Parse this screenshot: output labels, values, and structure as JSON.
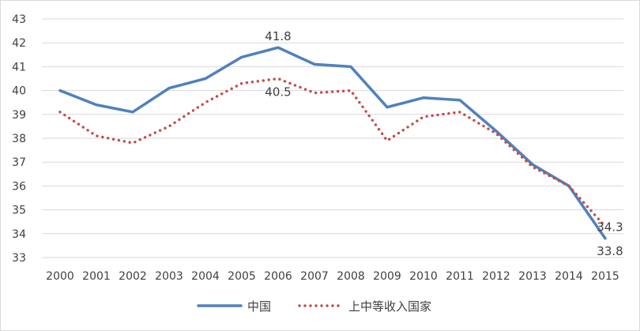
{
  "chart_data": {
    "type": "line",
    "categories": [
      "2000",
      "2001",
      "2002",
      "2003",
      "2004",
      "2005",
      "2006",
      "2007",
      "2008",
      "2009",
      "2010",
      "2011",
      "2012",
      "2013",
      "2014",
      "2015"
    ],
    "ylim": [
      33,
      43
    ],
    "yticks": [
      33,
      34,
      35,
      36,
      37,
      38,
      39,
      40,
      41,
      42,
      43
    ],
    "grid": true,
    "legend_position": "bottom",
    "series": [
      {
        "name": "中国",
        "color": "#4f81bd",
        "style": "solid",
        "values": [
          40.0,
          39.4,
          39.1,
          40.1,
          40.5,
          41.4,
          41.8,
          41.1,
          41.0,
          39.3,
          39.7,
          39.6,
          38.3,
          36.9,
          36.0,
          33.8
        ]
      },
      {
        "name": "上中等收入国家",
        "color": "#c0504d",
        "style": "dotted",
        "values": [
          39.1,
          38.1,
          37.8,
          38.5,
          39.5,
          40.3,
          40.5,
          39.9,
          40.0,
          37.9,
          38.9,
          39.1,
          38.2,
          36.8,
          36.0,
          34.3
        ]
      }
    ],
    "data_labels": [
      {
        "series": 0,
        "index": 6,
        "text": "41.8"
      },
      {
        "series": 1,
        "index": 6,
        "text": "40.5"
      },
      {
        "series": 1,
        "index": 15,
        "text": "34.3"
      },
      {
        "series": 0,
        "index": 15,
        "text": "33.8"
      }
    ]
  }
}
